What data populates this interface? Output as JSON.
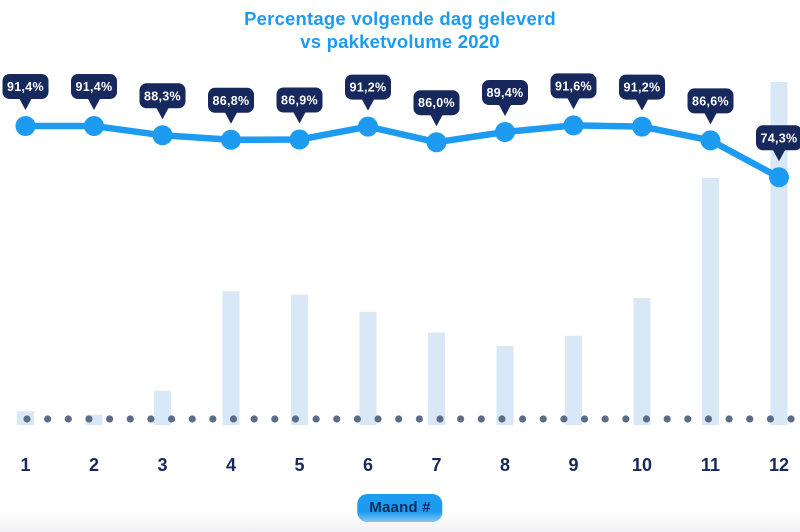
{
  "title": {
    "line1": "Percentage volgende dag geleverd",
    "line2": "vs pakketvolume 2020"
  },
  "x_axis": {
    "label_badge": "Maand #",
    "ticks": [
      "1",
      "2",
      "3",
      "4",
      "5",
      "6",
      "7",
      "8",
      "9",
      "10",
      "11",
      "12"
    ]
  },
  "chart_data": {
    "type": "combo",
    "title": "Percentage volgende dag geleverd vs pakketvolume 2020",
    "categories": [
      1,
      2,
      3,
      4,
      5,
      6,
      7,
      8,
      9,
      10,
      11,
      12
    ],
    "xlabel": "Maand #",
    "legend": "none",
    "axes": {
      "y_axis_visible": false,
      "x_ticks_visible": true
    },
    "baseline_style": "dotted",
    "series": [
      {
        "name": "Percentage volgende dag geleverd",
        "type": "line",
        "values": [
          91.4,
          91.4,
          88.3,
          86.8,
          86.9,
          91.2,
          86.0,
          89.4,
          91.6,
          91.2,
          86.6,
          74.3
        ],
        "point_labels": [
          "91,4%",
          "91,4%",
          "88,3%",
          "86,8%",
          "86,9%",
          "91,2%",
          "86,0%",
          "89,4%",
          "91,6%",
          "91,2%",
          "86,6%",
          "74,3%"
        ]
      },
      {
        "name": "Pakketvolume 2020",
        "type": "bar",
        "unit": "relative height (geen waarde-as zichtbaar)",
        "values": [
          4,
          3,
          10,
          39,
          38,
          33,
          27,
          23,
          26,
          37,
          72,
          100
        ]
      }
    ]
  },
  "colors": {
    "accent_blue": "#1D9BF0",
    "navy": "#17285C",
    "tooltip_bg": "#17285C",
    "tooltip_text": "#FFFFFF",
    "bar_fill": "#D8E8F7",
    "baseline_dot": "#5B6C88",
    "background": "#FFFFFF"
  }
}
